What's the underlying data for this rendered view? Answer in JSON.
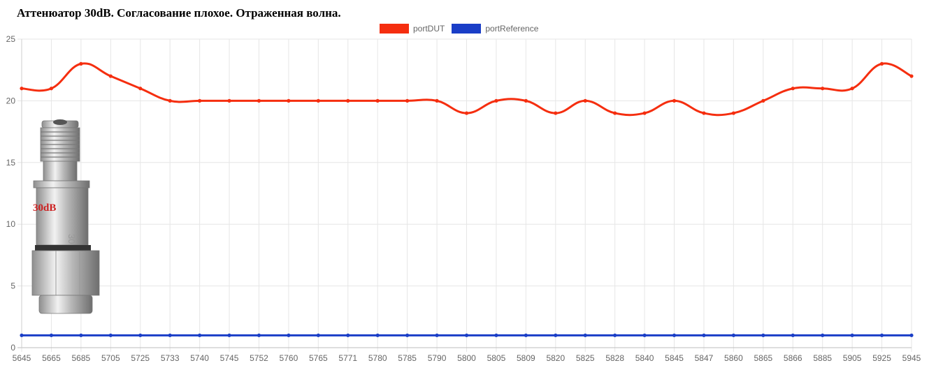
{
  "chart_data": {
    "type": "line",
    "title": "Аттенюатор 30dB. Согласование плохое. Отраженная волна.",
    "categories": [
      "5645",
      "5665",
      "5685",
      "5705",
      "5725",
      "5733",
      "5740",
      "5745",
      "5752",
      "5760",
      "5765",
      "5771",
      "5780",
      "5785",
      "5790",
      "5800",
      "5805",
      "5809",
      "5820",
      "5825",
      "5828",
      "5840",
      "5845",
      "5847",
      "5860",
      "5865",
      "5866",
      "5885",
      "5905",
      "5925",
      "5945"
    ],
    "series": [
      {
        "name": "portDUT",
        "color": "#f52e0f",
        "values": [
          21,
          21,
          23,
          22,
          21,
          20,
          20,
          20,
          20,
          20,
          20,
          20,
          20,
          20,
          20,
          19,
          20,
          20,
          19,
          20,
          19,
          19,
          20,
          19,
          19,
          20,
          21,
          21,
          21,
          23,
          22
        ]
      },
      {
        "name": "portReference",
        "color": "#1a3ec7",
        "values": [
          1,
          1,
          1,
          1,
          1,
          1,
          1,
          1,
          1,
          1,
          1,
          1,
          1,
          1,
          1,
          1,
          1,
          1,
          1,
          1,
          1,
          1,
          1,
          1,
          1,
          1,
          1,
          1,
          1,
          1,
          1
        ]
      }
    ],
    "ylim": [
      0,
      25
    ],
    "yticks": [
      0,
      5,
      10,
      15,
      20,
      25
    ],
    "xlabel": "",
    "ylabel": "",
    "grid": true,
    "legend_position": "top-center"
  },
  "inset_image": {
    "label": "30dB",
    "engraving": "30 dB",
    "description_icon": "sma-attenuator-photo"
  }
}
